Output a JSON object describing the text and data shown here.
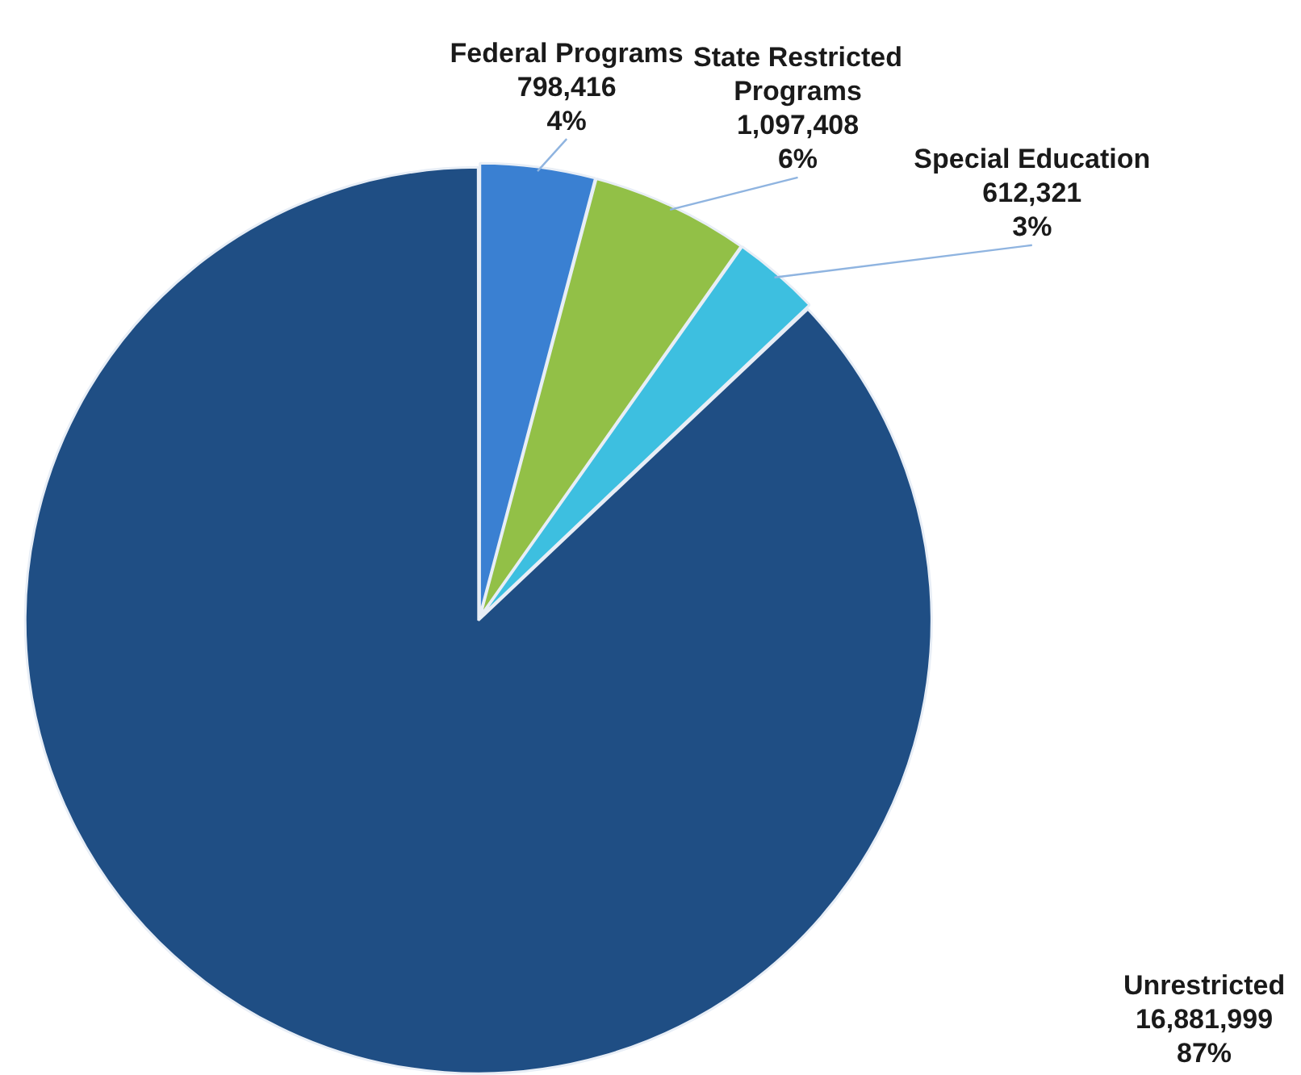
{
  "chart_data": {
    "type": "pie",
    "categories": [
      "Federal Programs",
      "State Restricted Programs",
      "Special Education",
      "Unrestricted"
    ],
    "values": [
      798416,
      1097408,
      612321,
      16881999
    ],
    "colors": [
      "#3a80d2",
      "#92c047",
      "#3dbfe0",
      "#1f4e84"
    ],
    "value_labels": [
      "798,416\n4%",
      "1,097,408\n6%",
      "612,321\n3%",
      "16,881,999\n87%"
    ],
    "legend": false
  }
}
